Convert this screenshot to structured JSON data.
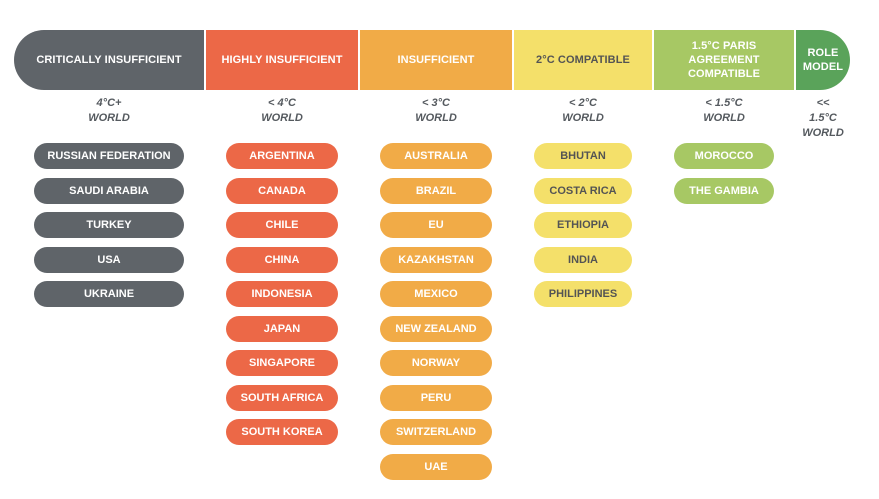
{
  "columns": [
    {
      "header": "CRITICALLY INSUFFICIENT",
      "world": "4°C+\nWORLD",
      "color": "#5f6469",
      "text_color": "#ffffff",
      "countries": [
        "RUSSIAN FEDERATION",
        "SAUDI ARABIA",
        "TURKEY",
        "USA",
        "UKRAINE"
      ]
    },
    {
      "header": "HIGHLY INSUFFICIENT",
      "world": "< 4°C\nWORLD",
      "color": "#ec6847",
      "text_color": "#ffffff",
      "countries": [
        "ARGENTINA",
        "CANADA",
        "CHILE",
        "CHINA",
        "INDONESIA",
        "JAPAN",
        "SINGAPORE",
        "SOUTH AFRICA",
        "SOUTH KOREA"
      ]
    },
    {
      "header": "INSUFFICIENT",
      "world": "< 3°C\nWORLD",
      "color": "#f1ab47",
      "text_color": "#ffffff",
      "countries": [
        "AUSTRALIA",
        "BRAZIL",
        "EU",
        "KAZAKHSTAN",
        "MEXICO",
        "NEW ZEALAND",
        "NORWAY",
        "PERU",
        "SWITZERLAND",
        "UAE"
      ]
    },
    {
      "header": "2°C COMPATIBLE",
      "world": "< 2°C\nWORLD",
      "color": "#f4e06a",
      "text_color": "#545454",
      "countries": [
        "BHUTAN",
        "COSTA RICA",
        "ETHIOPIA",
        "INDIA",
        "PHILIPPINES"
      ]
    },
    {
      "header": "1.5°C PARIS\nAGREEMENT\nCOMPATIBLE",
      "world": "< 1.5°C\nWORLD",
      "color": "#a7c864",
      "text_color": "#ffffff",
      "countries": [
        "MOROCCO",
        "THE GAMBIA"
      ]
    },
    {
      "header": "ROLE\nMODEL",
      "world": "<<\n1.5°C\nWORLD",
      "color": "#5aa35a",
      "text_color": "#ffffff",
      "countries": []
    }
  ]
}
